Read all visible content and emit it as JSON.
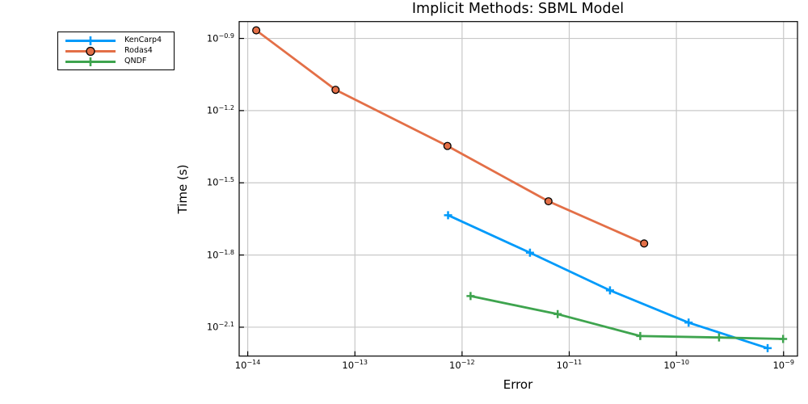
{
  "style": {
    "background": "#FFFFFF",
    "grid_color": "#C8C8C8",
    "axis_color": "#000000",
    "text_color": "#000000"
  },
  "chart_data": {
    "type": "line",
    "title": "Implicit Methods: SBML Model",
    "xlabel": "Error",
    "ylabel": "Time (s)",
    "grid": true,
    "legend_position": "outside-upper-left",
    "x_axis": {
      "scale": "log10",
      "tick_exponents": [
        -14,
        -13,
        -12,
        -11,
        -10,
        -9
      ],
      "range_exponents": [
        -14.08,
        -8.87
      ]
    },
    "y_axis": {
      "scale": "log10",
      "tick_exponents": [
        -0.9,
        -1.2,
        -1.5,
        -1.8,
        -2.1
      ],
      "range_exponents": [
        -2.22,
        -0.83
      ]
    },
    "series": [
      {
        "name": "KenCarp4",
        "color": "#009AFA",
        "marker": "plus",
        "points": [
          [
            7.4e-13,
            0.0232
          ],
          [
            4.3e-12,
            0.0162
          ],
          [
            2.4e-11,
            0.0113
          ],
          [
            1.3e-10,
            0.0083
          ],
          [
            7.1e-10,
            0.0065
          ]
        ]
      },
      {
        "name": "Rodas4",
        "color": "#E36F47",
        "marker": "circle",
        "marker_stroke": "#000000",
        "points": [
          [
            1.2e-14,
            0.136
          ],
          [
            6.6e-14,
            0.077
          ],
          [
            7.3e-13,
            0.045
          ],
          [
            6.4e-12,
            0.0265
          ],
          [
            5e-11,
            0.0177
          ]
        ]
      },
      {
        "name": "QNDF",
        "color": "#3EA44E",
        "marker": "plus",
        "points": [
          [
            1.2e-12,
            0.0107
          ],
          [
            7.8e-12,
            0.009
          ],
          [
            4.6e-11,
            0.0073
          ],
          [
            2.5e-10,
            0.0072
          ],
          [
            9.9e-10,
            0.0071
          ]
        ]
      }
    ]
  }
}
